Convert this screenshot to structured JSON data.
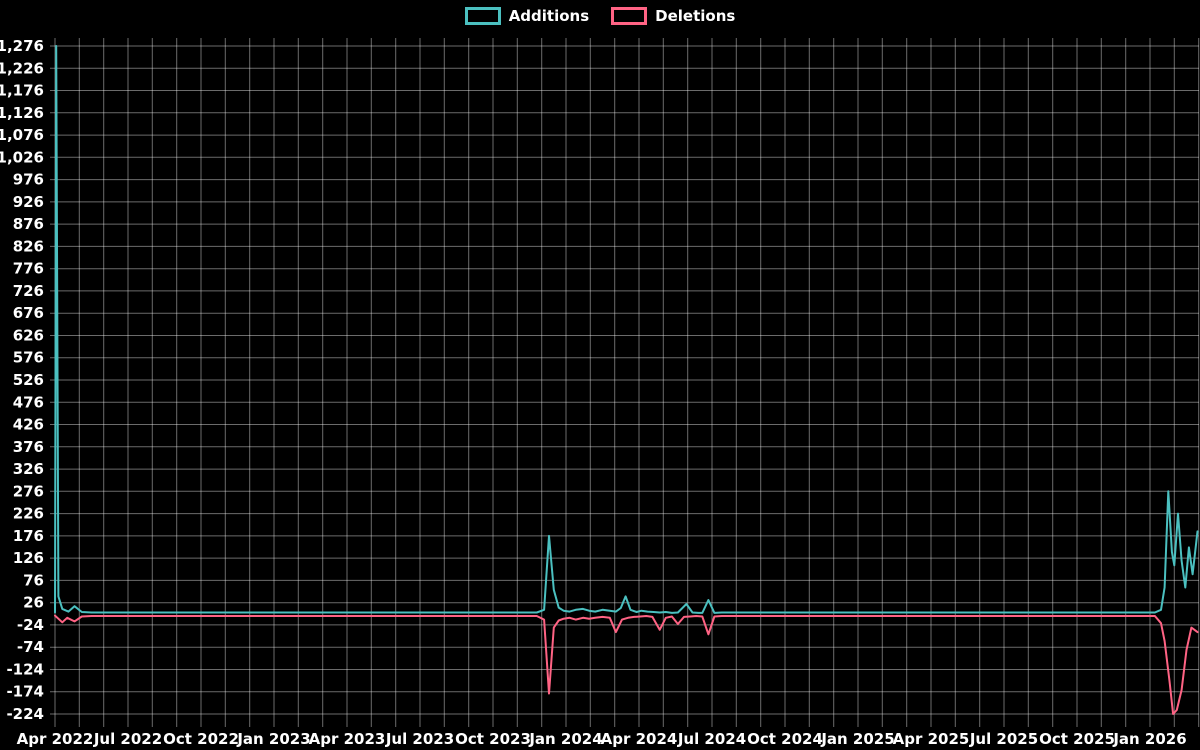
{
  "chart_data": {
    "type": "line",
    "title": "",
    "xlabel": "",
    "ylabel": "",
    "background_color": "#000000",
    "grid": true,
    "grid_color": "rgba(255,255,255,0.42)",
    "text_color": "#ffffff",
    "legend_position": "top",
    "x_unit": "months since Apr 2022",
    "xlim": [
      0,
      47
    ],
    "ylim": [
      -224,
      1276
    ],
    "y_tick_step": 50,
    "y_ticks": [
      -224,
      -174,
      -124,
      -74,
      -24,
      26,
      76,
      126,
      176,
      226,
      276,
      326,
      376,
      426,
      476,
      526,
      576,
      626,
      676,
      726,
      776,
      826,
      876,
      926,
      976,
      1026,
      1076,
      1126,
      1176,
      1226,
      1276
    ],
    "x_ticks": [
      {
        "m": 0,
        "label": "Apr 2022"
      },
      {
        "m": 3,
        "label": "Jul 2022"
      },
      {
        "m": 6,
        "label": "Oct 2022"
      },
      {
        "m": 9,
        "label": "Jan 2023"
      },
      {
        "m": 12,
        "label": "Apr 2023"
      },
      {
        "m": 15,
        "label": "Jul 2023"
      },
      {
        "m": 18,
        "label": "Oct 2023"
      },
      {
        "m": 21,
        "label": "Jan 2024"
      },
      {
        "m": 24,
        "label": "Apr 2024"
      },
      {
        "m": 27,
        "label": "Jul 2024"
      },
      {
        "m": 30,
        "label": "Oct 2024"
      },
      {
        "m": 33,
        "label": "Jan 2025"
      },
      {
        "m": 36,
        "label": "Apr 2025"
      },
      {
        "m": 39,
        "label": "Jul 2025"
      },
      {
        "m": 42,
        "label": "Oct 2025"
      },
      {
        "m": 45,
        "label": "Jan 2026"
      }
    ],
    "series": [
      {
        "name": "Additions",
        "color": "#4bc0c0",
        "points": [
          [
            0,
            4
          ],
          [
            0.05,
            1276
          ],
          [
            0.14,
            40
          ],
          [
            0.3,
            12
          ],
          [
            0.55,
            6
          ],
          [
            0.8,
            18
          ],
          [
            1.1,
            5
          ],
          [
            1.5,
            4
          ],
          [
            19.8,
            4
          ],
          [
            20.1,
            10
          ],
          [
            20.3,
            176
          ],
          [
            20.5,
            55
          ],
          [
            20.7,
            15
          ],
          [
            20.9,
            8
          ],
          [
            21.15,
            6
          ],
          [
            21.4,
            10
          ],
          [
            21.7,
            12
          ],
          [
            21.95,
            8
          ],
          [
            22.2,
            6
          ],
          [
            22.5,
            10
          ],
          [
            22.8,
            8
          ],
          [
            23.05,
            6
          ],
          [
            23.25,
            14
          ],
          [
            23.45,
            40
          ],
          [
            23.65,
            10
          ],
          [
            23.9,
            5
          ],
          [
            24.1,
            8
          ],
          [
            24.35,
            6
          ],
          [
            24.6,
            5
          ],
          [
            24.85,
            4
          ],
          [
            25.1,
            5
          ],
          [
            25.35,
            3
          ],
          [
            25.6,
            4
          ],
          [
            25.95,
            23
          ],
          [
            26.2,
            4
          ],
          [
            26.45,
            3
          ],
          [
            26.6,
            3
          ],
          [
            26.85,
            32
          ],
          [
            27.1,
            3
          ],
          [
            27.4,
            4
          ],
          [
            45.2,
            4
          ],
          [
            45.45,
            10
          ],
          [
            45.6,
            60
          ],
          [
            45.75,
            276
          ],
          [
            45.9,
            140
          ],
          [
            46.0,
            110
          ],
          [
            46.15,
            226
          ],
          [
            46.3,
            120
          ],
          [
            46.45,
            60
          ],
          [
            46.6,
            150
          ],
          [
            46.75,
            90
          ],
          [
            46.95,
            186
          ]
        ]
      },
      {
        "name": "Deletions",
        "color": "#ff6384",
        "points": [
          [
            0,
            -3
          ],
          [
            0.1,
            -8
          ],
          [
            0.3,
            -18
          ],
          [
            0.5,
            -8
          ],
          [
            0.8,
            -16
          ],
          [
            1.1,
            -5
          ],
          [
            1.5,
            -4
          ],
          [
            19.8,
            -4
          ],
          [
            20.1,
            -12
          ],
          [
            20.3,
            -178
          ],
          [
            20.5,
            -30
          ],
          [
            20.7,
            -14
          ],
          [
            20.9,
            -10
          ],
          [
            21.15,
            -8
          ],
          [
            21.4,
            -12
          ],
          [
            21.7,
            -8
          ],
          [
            21.95,
            -10
          ],
          [
            22.2,
            -8
          ],
          [
            22.5,
            -6
          ],
          [
            22.8,
            -8
          ],
          [
            23.05,
            -40
          ],
          [
            23.3,
            -12
          ],
          [
            23.55,
            -8
          ],
          [
            23.8,
            -6
          ],
          [
            24.05,
            -5
          ],
          [
            24.3,
            -4
          ],
          [
            24.55,
            -6
          ],
          [
            24.85,
            -35
          ],
          [
            25.1,
            -8
          ],
          [
            25.35,
            -5
          ],
          [
            25.6,
            -22
          ],
          [
            25.85,
            -6
          ],
          [
            26.1,
            -5
          ],
          [
            26.35,
            -4
          ],
          [
            26.6,
            -5
          ],
          [
            26.85,
            -45
          ],
          [
            27.1,
            -5
          ],
          [
            27.4,
            -4
          ],
          [
            45.2,
            -4
          ],
          [
            45.45,
            -20
          ],
          [
            45.6,
            -60
          ],
          [
            45.8,
            -150
          ],
          [
            45.95,
            -224
          ],
          [
            46.1,
            -215
          ],
          [
            46.3,
            -170
          ],
          [
            46.5,
            -80
          ],
          [
            46.7,
            -30
          ],
          [
            46.95,
            -40
          ]
        ]
      }
    ]
  }
}
